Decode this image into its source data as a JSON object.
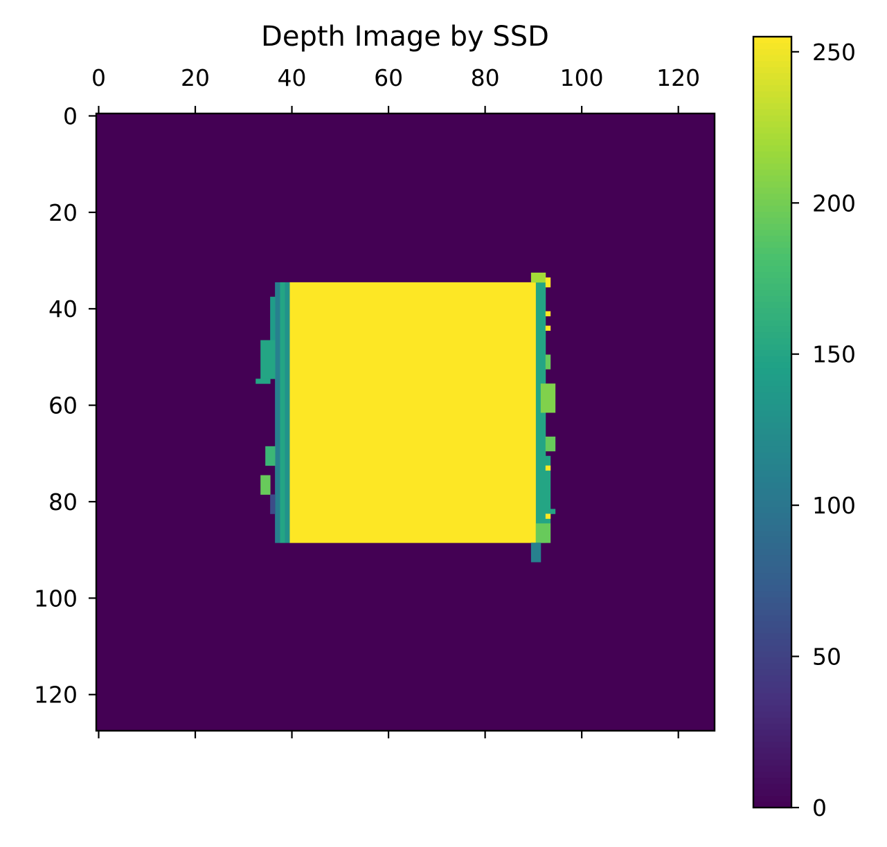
{
  "chart_data": {
    "type": "heatmap",
    "title": "Depth Image by SSD",
    "xlabel": "",
    "ylabel": "",
    "image_shape": [
      128,
      128
    ],
    "xlim": [
      -0.5,
      127.5
    ],
    "ylim": [
      127.5,
      -0.5
    ],
    "x_ticks": [
      0,
      20,
      40,
      60,
      80,
      100,
      120
    ],
    "y_ticks": [
      0,
      20,
      40,
      60,
      80,
      100,
      120
    ],
    "x_tick_position": "top",
    "grid": false,
    "background_value": 0,
    "colormap": "viridis",
    "colorbar": {
      "min": 0,
      "max": 255,
      "ticks": [
        0,
        50,
        100,
        150,
        200,
        250
      ]
    },
    "regions": [
      {
        "label": "near-object",
        "x": [
          40,
          90
        ],
        "y": [
          35,
          88
        ],
        "value": 255
      },
      {
        "label": "left-edge-band",
        "x": [
          39,
          39
        ],
        "y": [
          35,
          88
        ],
        "value": 130
      },
      {
        "label": "left-edge-band",
        "x": [
          38,
          38
        ],
        "y": [
          35,
          88
        ],
        "value": 150
      },
      {
        "label": "left-edge-band",
        "x": [
          37,
          37
        ],
        "y": [
          35,
          88
        ],
        "value": 110
      },
      {
        "label": "left-edge-band",
        "x": [
          36,
          36
        ],
        "y": [
          38,
          52
        ],
        "value": 140
      },
      {
        "label": "left-edge-band",
        "x": [
          34,
          36
        ],
        "y": [
          47,
          54
        ],
        "value": 150
      },
      {
        "label": "left-edge-band",
        "x": [
          33,
          35
        ],
        "y": [
          55,
          55
        ],
        "value": 150
      },
      {
        "label": "left-edge-band",
        "x": [
          35,
          36
        ],
        "y": [
          69,
          72
        ],
        "value": 170
      },
      {
        "label": "left-edge-band",
        "x": [
          34,
          35
        ],
        "y": [
          75,
          78
        ],
        "value": 195
      },
      {
        "label": "left-edge-band",
        "x": [
          36,
          36
        ],
        "y": [
          79,
          82
        ],
        "value": 60
      },
      {
        "label": "right-edge-band",
        "x": [
          91,
          92
        ],
        "y": [
          35,
          88
        ],
        "value": 150
      },
      {
        "label": "right-edge-band",
        "x": [
          93,
          93
        ],
        "y": [
          50,
          52
        ],
        "value": 195
      },
      {
        "label": "right-edge-band",
        "x": [
          92,
          94
        ],
        "y": [
          56,
          61
        ],
        "value": 205
      },
      {
        "label": "right-edge-band",
        "x": [
          93,
          94
        ],
        "y": [
          67,
          69
        ],
        "value": 195
      },
      {
        "label": "right-edge-band",
        "x": [
          92,
          93
        ],
        "y": [
          71,
          84
        ],
        "value": 150
      },
      {
        "label": "right-edge-band",
        "x": [
          94,
          94
        ],
        "y": [
          82,
          82
        ],
        "value": 150
      },
      {
        "label": "right-edge-band",
        "x": [
          91,
          93
        ],
        "y": [
          85,
          88
        ],
        "value": 195
      },
      {
        "label": "right-edge-band",
        "x": [
          90,
          91
        ],
        "y": [
          89,
          92
        ],
        "value": 110
      },
      {
        "label": "right-edge-band",
        "x": [
          90,
          92
        ],
        "y": [
          33,
          34
        ],
        "value": 220
      },
      {
        "label": "right-edge-spot",
        "x": [
          93,
          93
        ],
        "y": [
          34,
          35
        ],
        "value": 255
      },
      {
        "label": "right-edge-spot",
        "x": [
          93,
          93
        ],
        "y": [
          41,
          41
        ],
        "value": 255
      },
      {
        "label": "right-edge-spot",
        "x": [
          93,
          93
        ],
        "y": [
          44,
          44
        ],
        "value": 255
      },
      {
        "label": "right-edge-spot",
        "x": [
          93,
          93
        ],
        "y": [
          73,
          73
        ],
        "value": 255
      },
      {
        "label": "right-edge-spot",
        "x": [
          93,
          93
        ],
        "y": [
          83,
          83
        ],
        "value": 255
      }
    ]
  }
}
